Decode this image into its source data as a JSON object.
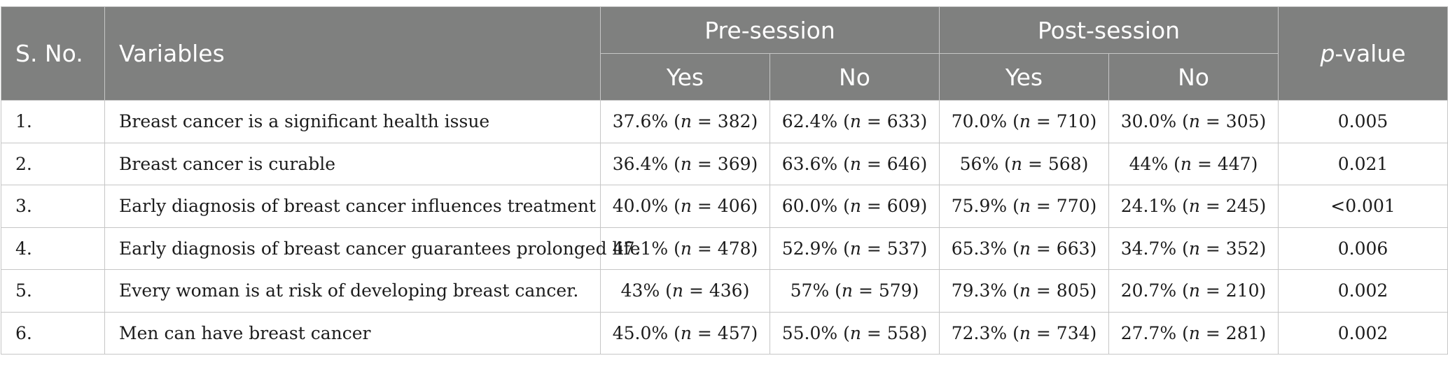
{
  "table": {
    "headers": {
      "sno": "S. No.",
      "variables": "Variables",
      "pre_session": "Pre-session",
      "post_session": "Post-session",
      "p_value_italic": "p",
      "p_value_rest": "-value",
      "pre_yes": "Yes",
      "pre_no": "No",
      "post_yes": "Yes",
      "post_no": "No"
    },
    "rows": [
      {
        "sno": "1.",
        "variable": "Breast cancer is a significant health issue",
        "pre_yes": {
          "pct": "37.6% (",
          "n": "382)"
        },
        "pre_no": {
          "pct": "62.4% (",
          "n": "633)"
        },
        "post_yes": {
          "pct": "70.0% (",
          "n": "710)"
        },
        "post_no": {
          "pct": "30.0% (",
          "n": "305)"
        },
        "p": "0.005"
      },
      {
        "sno": "2.",
        "variable": "Breast cancer is curable",
        "pre_yes": {
          "pct": "36.4% (",
          "n": "369)"
        },
        "pre_no": {
          "pct": "63.6% (",
          "n": "646)"
        },
        "post_yes": {
          "pct": "56% (",
          "n": "568)"
        },
        "post_no": {
          "pct": "44% (",
          "n": "447)"
        },
        "p": "0.021"
      },
      {
        "sno": "3.",
        "variable": "Early diagnosis of breast cancer influences treatment",
        "pre_yes": {
          "pct": "40.0% (",
          "n": "406)"
        },
        "pre_no": {
          "pct": "60.0% (",
          "n": "609)"
        },
        "post_yes": {
          "pct": "75.9% (",
          "n": "770)"
        },
        "post_no": {
          "pct": "24.1% (",
          "n": "245)"
        },
        "p": "<0.001"
      },
      {
        "sno": "4.",
        "variable": "Early diagnosis of breast cancer guarantees prolonged life",
        "pre_yes": {
          "pct": "47.1% (",
          "n": "478)"
        },
        "pre_no": {
          "pct": "52.9% (",
          "n": "537)"
        },
        "post_yes": {
          "pct": "65.3% (",
          "n": "663)"
        },
        "post_no": {
          "pct": "34.7% (",
          "n": "352)"
        },
        "p": "0.006"
      },
      {
        "sno": "5.",
        "variable": "Every woman is at risk of developing breast cancer.",
        "pre_yes": {
          "pct": "43% (",
          "n": "436)"
        },
        "pre_no": {
          "pct": "57% (",
          "n": "579)"
        },
        "post_yes": {
          "pct": "79.3% (",
          "n": "805)"
        },
        "post_no": {
          "pct": "20.7% (",
          "n": "210)"
        },
        "p": "0.002"
      },
      {
        "sno": "6.",
        "variable": "Men can have breast cancer",
        "pre_yes": {
          "pct": "45.0% (",
          "n": "457)"
        },
        "pre_no": {
          "pct": "55.0% (",
          "n": "558)"
        },
        "post_yes": {
          "pct": "72.3% (",
          "n": "734)"
        },
        "post_no": {
          "pct": "27.7% (",
          "n": "281)"
        },
        "p": "0.002"
      }
    ],
    "n_symbol": "n",
    "equals": " = "
  },
  "colors": {
    "header_bg": "#7f807f",
    "header_text": "#ffffff",
    "border": "#c6c6c6",
    "body_text": "#1c1c1c"
  }
}
